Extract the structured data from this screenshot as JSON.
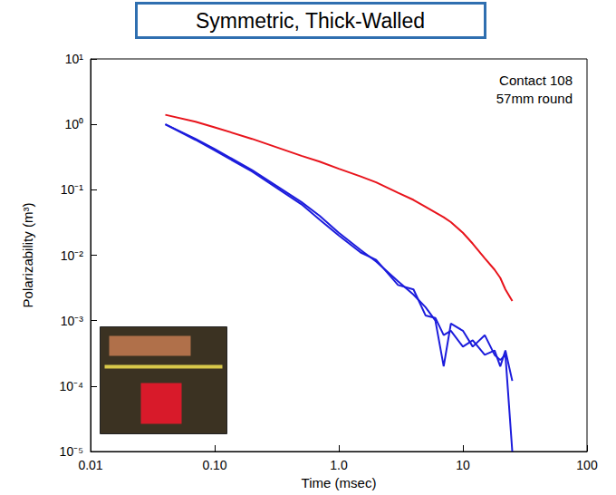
{
  "chart_data": {
    "type": "line",
    "title": "Symmetric, Thick-Walled",
    "x_label": "Time (msec)",
    "y_label": "Polarizability (m³)",
    "annotations": [
      "Contact 108",
      "57mm round"
    ],
    "log": true,
    "grid": false,
    "x": [
      0.04,
      0.07,
      0.1,
      0.2,
      0.5,
      0.7,
      1,
      1.5,
      2,
      3,
      4,
      5,
      6,
      7,
      8,
      10,
      12,
      15,
      18,
      20,
      22,
      25
    ],
    "series": [
      {
        "color": "#e8141c",
        "line_style": "solid",
        "values": [
          1.4,
          1.1,
          0.9,
          0.6,
          0.33,
          0.27,
          0.21,
          0.16,
          0.13,
          0.09,
          0.07,
          0.055,
          0.045,
          0.038,
          0.032,
          0.022,
          0.015,
          0.009,
          0.006,
          0.0045,
          0.003,
          0.002
        ]
      },
      {
        "color": "#1c1cdc",
        "line_style": "solid",
        "values": [
          1.0,
          0.6,
          0.42,
          0.2,
          0.065,
          0.04,
          0.022,
          0.012,
          0.008,
          0.004,
          0.0025,
          0.0016,
          0.001,
          0.0002,
          0.0009,
          0.0007,
          0.0004,
          0.0006,
          0.0003,
          0.00025,
          0.0003,
          1e-05
        ]
      },
      {
        "color": "#1c1cdc",
        "line_style": "solid",
        "values": [
          1.0,
          0.58,
          0.4,
          0.19,
          0.06,
          0.035,
          0.02,
          0.011,
          0.0085,
          0.0035,
          0.003,
          0.0012,
          0.0011,
          0.0006,
          0.0007,
          0.0004,
          0.0005,
          0.0003,
          0.00035,
          0.0002,
          0.00035,
          0.00012
        ]
      }
    ],
    "xlim": [
      0.01,
      100
    ],
    "xticks": [
      {
        "value": 0.01,
        "label": "0.01"
      },
      {
        "value": 0.1,
        "label": "0.10"
      },
      {
        "value": 1,
        "label": "1.0"
      },
      10,
      100
    ],
    "ylim": [
      1e-05,
      10
    ],
    "yticks": [
      {
        "value": 1e-05,
        "label": "10⁻⁵"
      },
      {
        "value": 0.0001,
        "label": "10⁻⁴"
      },
      {
        "value": 0.001,
        "label": "10⁻³"
      },
      {
        "value": 0.01,
        "label": "10⁻²"
      },
      {
        "value": 0.1,
        "label": "10⁻¹"
      },
      {
        "value": 1,
        "label": "10⁰"
      },
      {
        "value": 10,
        "label": "10¹"
      }
    ]
  }
}
